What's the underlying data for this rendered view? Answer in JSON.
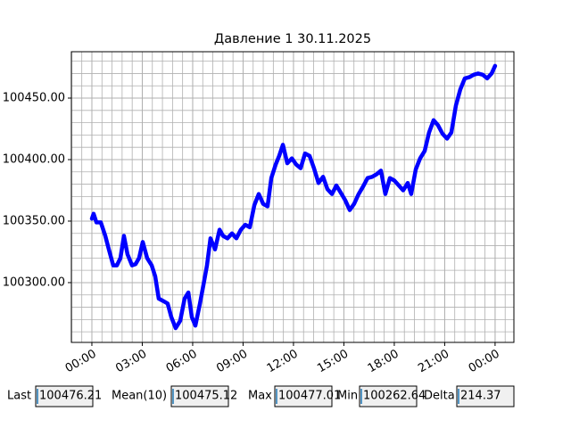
{
  "chart_data": {
    "type": "line",
    "title": "Давление 1 30.11.2025",
    "x": [
      0,
      0.1,
      0.27,
      0.53,
      0.8,
      1.01,
      1.27,
      1.49,
      1.7,
      1.91,
      2.12,
      2.39,
      2.6,
      2.81,
      3.03,
      3.29,
      3.56,
      3.77,
      3.98,
      4.25,
      4.51,
      4.73,
      4.99,
      5.26,
      5.52,
      5.74,
      5.95,
      6.16,
      6.43,
      6.64,
      6.85,
      7.06,
      7.33,
      7.6,
      7.81,
      8.07,
      8.34,
      8.6,
      8.87,
      9.13,
      9.4,
      9.67,
      9.93,
      10.2,
      10.46,
      10.68,
      10.94,
      11.15,
      11.37,
      11.63,
      11.9,
      12.16,
      12.43,
      12.69,
      12.96,
      13.22,
      13.49,
      13.76,
      14.02,
      14.29,
      14.55,
      14.82,
      15.08,
      15.35,
      15.61,
      15.88,
      16.14,
      16.41,
      16.68,
      16.94,
      17.21,
      17.47,
      17.74,
      18.0,
      18.27,
      18.53,
      18.8,
      19.01,
      19.28,
      19.54,
      19.81,
      20.07,
      20.34,
      20.6,
      20.87,
      21.14,
      21.4,
      21.67,
      21.93,
      22.2,
      22.46,
      22.73,
      22.99,
      23.26,
      23.53,
      23.79,
      24.0
    ],
    "series": [
      {
        "name": "Давление 1",
        "color": "#0000ff",
        "values": [
          100352,
          100356,
          100349,
          100349,
          100338,
          100327,
          100314,
          100314,
          100320,
          100338,
          100323,
          100314,
          100315,
          100320,
          100333,
          100320,
          100314,
          100305,
          100287,
          100285,
          100283,
          100272,
          100263,
          100269,
          100287,
          100292,
          100272,
          100265,
          100283,
          100298,
          100314,
          100336,
          100327,
          100343,
          100338,
          100336,
          100340,
          100336,
          100343,
          100347,
          100345,
          100363,
          100372,
          100364,
          100362,
          100385,
          100396,
          100403,
          100412,
          100397,
          100401,
          100396,
          100393,
          100405,
          100403,
          100393,
          100381,
          100386,
          100376,
          100372,
          100379,
          100373,
          100367,
          100359,
          100364,
          100372,
          100378,
          100385,
          100386,
          100388,
          100391,
          100372,
          100385,
          100383,
          100379,
          100375,
          100381,
          100372,
          100392,
          100401,
          100407,
          100422,
          100432,
          100428,
          100421,
          100417,
          100422,
          100444,
          100457,
          100466,
          100467,
          100469,
          100470,
          100469,
          100466,
          100470,
          100476.21
        ]
      }
    ],
    "xlim": [
      -1.22,
      25.12
    ],
    "xticks": [
      {
        "value": 0,
        "label": "00:00"
      },
      {
        "value": 3,
        "label": "03:00"
      },
      {
        "value": 6,
        "label": "06:00"
      },
      {
        "value": 9,
        "label": "09:00"
      },
      {
        "value": 12,
        "label": "12:00"
      },
      {
        "value": 15,
        "label": "15:00"
      },
      {
        "value": 18,
        "label": "18:00"
      },
      {
        "value": 21,
        "label": "21:00"
      },
      {
        "value": 24,
        "label": "00:00"
      }
    ],
    "ylim": [
      100251.4,
      100487.7
    ],
    "yticks": [
      {
        "value": 100300,
        "label": "100300.00"
      },
      {
        "value": 100350,
        "label": "100350.00"
      },
      {
        "value": 100400,
        "label": "100400.00"
      },
      {
        "value": 100450,
        "label": "100450.00"
      }
    ],
    "grid": true
  },
  "widgets": [
    {
      "label": "Last",
      "value": "100476.21"
    },
    {
      "label": "Mean(10)",
      "value": "100475.12"
    },
    {
      "label": "Max",
      "value": "100477.01"
    },
    {
      "label": "Min",
      "value": "100262.64"
    },
    {
      "label": "Delta",
      "value": "214.37"
    }
  ]
}
